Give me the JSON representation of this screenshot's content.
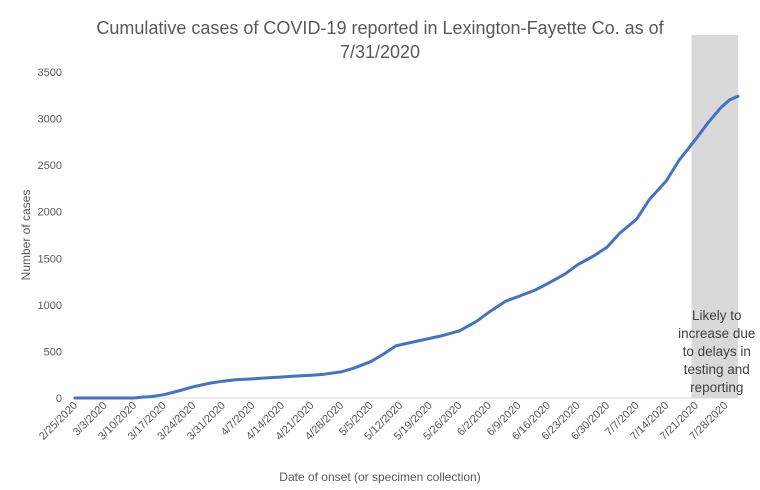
{
  "chart_data": {
    "type": "line",
    "title_line1": "Cumulative cases of COVID-19 reported in Lexington-Fayette Co.  as of",
    "title_line2": "7/31/2020",
    "xlabel": "Date of onset (or specimen collection)",
    "ylabel": "Number of cases",
    "ylim": [
      0,
      3500
    ],
    "y_ticks": [
      "0",
      "500",
      "1000",
      "1500",
      "2000",
      "2500",
      "3000",
      "3500"
    ],
    "x_ticks": [
      "2/25/2020",
      "3/3/2020",
      "3/10/2020",
      "3/17/2020",
      "3/24/2020",
      "3/31/2020",
      "4/7/2020",
      "4/14/2020",
      "4/21/2020",
      "4/28/2020",
      "5/5/2020",
      "5/12/2020",
      "5/19/2020",
      "5/26/2020",
      "6/2/2020",
      "6/9/2020",
      "6/16/2020",
      "6/23/2020",
      "6/30/2020",
      "7/7/2020",
      "7/14/2020",
      "7/21/2020",
      "7/28/2020"
    ],
    "grid": false,
    "series_color": "#4472C4",
    "shade_color": "#D9D9D9",
    "shaded_region": [
      "7/20/2020",
      "7/31/2020"
    ],
    "annotation_lines": [
      "Likely to",
      "increase due",
      "to delays in",
      "testing and",
      "reporting"
    ],
    "series": [
      {
        "x": [
          "2/25/2020",
          "3/3/2020",
          "3/10/2020",
          "3/12/2020",
          "3/14/2020",
          "3/17/2020",
          "3/20/2020",
          "3/24/2020",
          "3/28/2020",
          "3/31/2020",
          "4/3/2020",
          "4/7/2020",
          "4/10/2020",
          "4/14/2020",
          "4/17/2020",
          "4/21/2020",
          "4/24/2020",
          "4/28/2020",
          "5/1/2020",
          "5/5/2020",
          "5/8/2020",
          "5/11/2020",
          "5/14/2020",
          "5/19/2020",
          "5/22/2020",
          "5/26/2020",
          "5/30/2020",
          "6/2/2020",
          "6/6/2020",
          "6/9/2020",
          "6/13/2020",
          "6/16/2020",
          "6/20/2020",
          "6/23/2020",
          "6/27/2020",
          "6/30/2020",
          "7/3/2020",
          "7/7/2020",
          "7/10/2020",
          "7/14/2020",
          "7/17/2020",
          "7/21/2020",
          "7/24/2020",
          "7/27/2020",
          "7/29/2020",
          "7/31/2020"
        ],
        "values": [
          0,
          0,
          0,
          10,
          15,
          35,
          70,
          120,
          160,
          180,
          195,
          205,
          215,
          225,
          235,
          245,
          255,
          280,
          320,
          390,
          470,
          560,
          590,
          640,
          670,
          720,
          820,
          920,
          1040,
          1090,
          1160,
          1230,
          1330,
          1430,
          1530,
          1620,
          1770,
          1920,
          2130,
          2330,
          2550,
          2780,
          2960,
          3120,
          3200,
          3240
        ]
      }
    ]
  }
}
